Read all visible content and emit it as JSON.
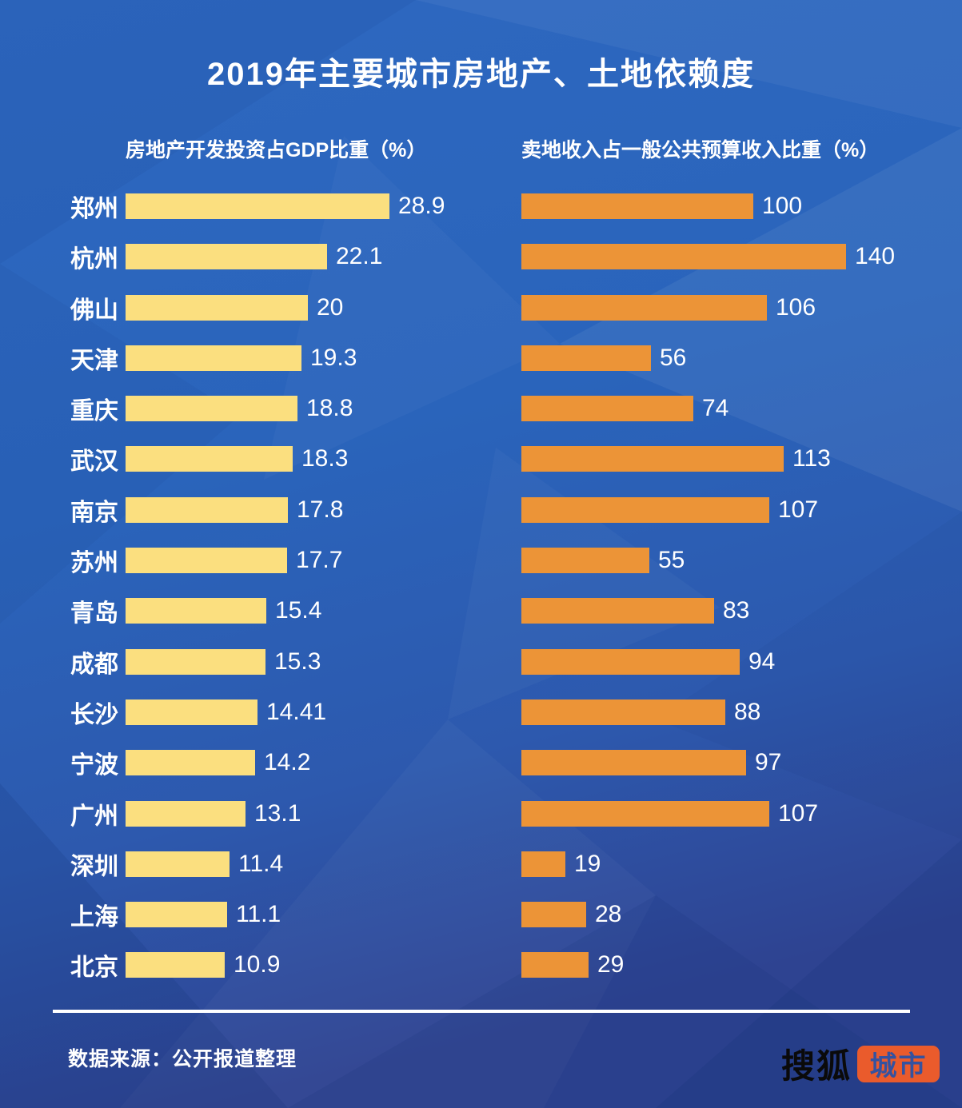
{
  "title": "2019年主要城市房地产、土地依赖度",
  "chart_data": {
    "type": "bar",
    "orientation": "horizontal",
    "grid": false,
    "legend_position": "column-headers",
    "categories": [
      "郑州",
      "杭州",
      "佛山",
      "天津",
      "重庆",
      "武汉",
      "南京",
      "苏州",
      "青岛",
      "成都",
      "长沙",
      "宁波",
      "广州",
      "深圳",
      "上海",
      "北京"
    ],
    "series": [
      {
        "name": "房地产开发投资占GDP比重（%）",
        "values": [
          28.9,
          22.1,
          20,
          19.3,
          18.8,
          18.3,
          17.8,
          17.7,
          15.4,
          15.3,
          14.41,
          14.2,
          13.1,
          11.4,
          11.1,
          10.9
        ],
        "color": "#fbdf7f",
        "xlim": [
          0,
          29
        ]
      },
      {
        "name": "卖地收入占一般公共预算收入比重（%）",
        "values": [
          100,
          140,
          106,
          56,
          74,
          113,
          107,
          55,
          83,
          94,
          88,
          97,
          107,
          19,
          28,
          29
        ],
        "color": "#ec9437",
        "xlim": [
          0,
          140
        ]
      }
    ]
  },
  "footer": {
    "source": "数据来源：公开报道整理",
    "logo": {
      "brand": "搜狐",
      "badge": "城市"
    }
  },
  "colors": {
    "background_top": "#2e68c0",
    "background_mid": "#2a64bb",
    "background_bottom": "#2e4391",
    "bar_left": "#fbdf7f",
    "bar_right": "#ec9437",
    "text": "#ffffff",
    "divider": "#ffffff",
    "logo_brand_text": "#0a0a0a",
    "logo_badge_bg": "#ea5b2c",
    "logo_badge_text": "#3452a0"
  }
}
